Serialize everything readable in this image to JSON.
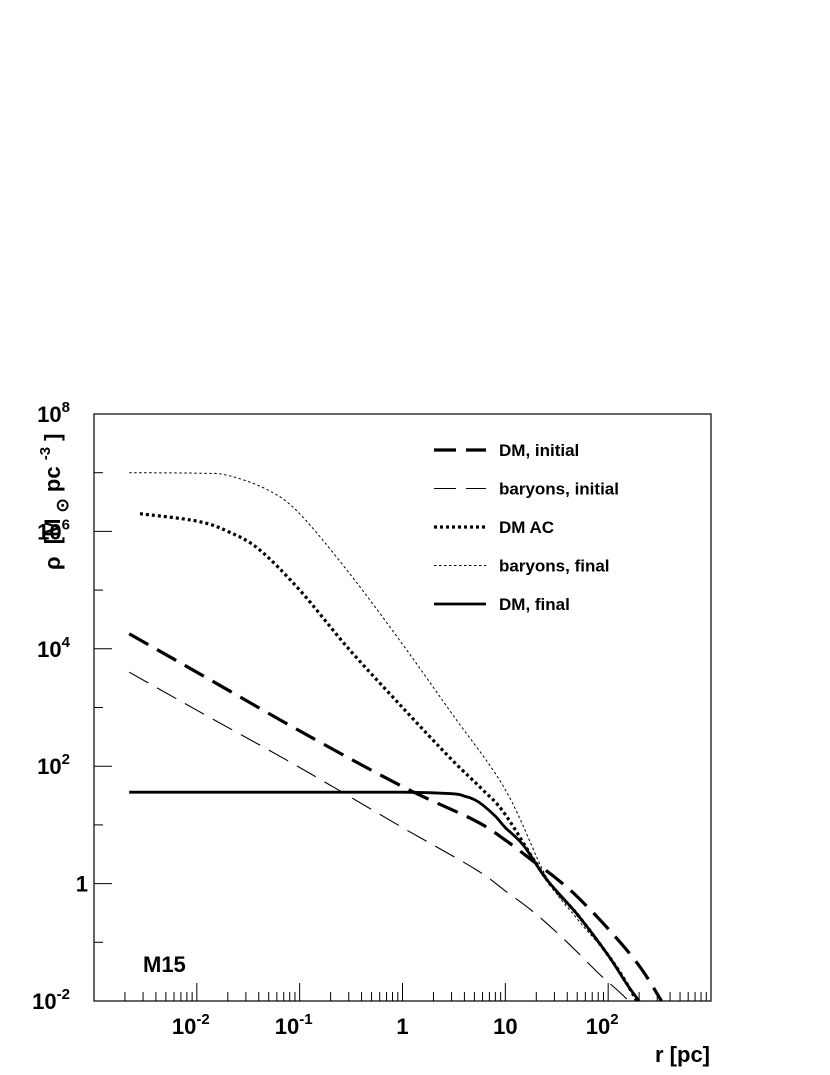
{
  "chart_data": {
    "type": "line",
    "title": "",
    "xlabel": "r [pc]",
    "ylabel": "ρ [M⊙pc⁻³]",
    "ylabel_parts": {
      "sym": "ρ",
      "open": "[M",
      "sun": "⊙",
      "unit": "pc",
      "exp": "-3",
      "close": "]"
    },
    "xscale": "log",
    "yscale": "log",
    "xlim": [
      0.001,
      1000
    ],
    "ylim": [
      0.01,
      100000000
    ],
    "x_ticks": [
      {
        "value": 0.01,
        "base": "10",
        "exp": "-2"
      },
      {
        "value": 0.1,
        "base": "10",
        "exp": "-1"
      },
      {
        "value": 1,
        "base": "1",
        "exp": ""
      },
      {
        "value": 10,
        "base": "10",
        "exp": ""
      },
      {
        "value": 100,
        "base": "10",
        "exp": "2"
      }
    ],
    "y_ticks": [
      {
        "value": 0.01,
        "base": "10",
        "exp": "-2"
      },
      {
        "value": 1,
        "base": "1",
        "exp": ""
      },
      {
        "value": 100,
        "base": "10",
        "exp": "2"
      },
      {
        "value": 10000,
        "base": "10",
        "exp": "4"
      },
      {
        "value": 1000000,
        "base": "10",
        "exp": "6"
      },
      {
        "value": 100000000,
        "base": "10",
        "exp": "8"
      }
    ],
    "annotation": "M15",
    "legend_position": "top-right",
    "series": [
      {
        "name": "DM, initial",
        "style": "long-dash-thick",
        "x": [
          0.0022,
          0.01,
          0.1,
          1,
          5,
          10,
          20,
          30,
          50,
          100,
          200,
          330
        ],
        "y": [
          18000,
          4000,
          400,
          45,
          12,
          5.5,
          2.2,
          1.3,
          0.6,
          0.17,
          0.04,
          0.01
        ]
      },
      {
        "name": "baryons, initial",
        "style": "long-dash-thin",
        "x": [
          0.0022,
          0.01,
          0.1,
          1,
          5,
          10,
          20,
          40,
          80,
          130,
          180
        ],
        "y": [
          4000,
          900,
          95,
          9,
          1.8,
          0.75,
          0.3,
          0.1,
          0.03,
          0.014,
          0.008
        ]
      },
      {
        "name": "DM AC",
        "style": "dotted-thick",
        "x": [
          0.0028,
          0.01,
          0.02,
          0.04,
          0.1,
          0.3,
          1,
          3,
          6,
          10,
          25,
          50,
          100,
          140,
          190
        ],
        "y": [
          2000000,
          1500000,
          1000000,
          500000,
          100000,
          10000,
          1000,
          130,
          40,
          15,
          1.2,
          0.3,
          0.06,
          0.025,
          0.01
        ]
      },
      {
        "name": "baryons, final",
        "style": "dotted-thin",
        "x": [
          0.0022,
          0.01,
          0.02,
          0.05,
          0.1,
          0.3,
          1,
          3,
          10,
          25,
          50,
          100,
          200
        ],
        "y": [
          10000000,
          9800000,
          9000000,
          5000000,
          2000000,
          200000,
          12000,
          800,
          40,
          1.3,
          0.25,
          0.06,
          0.01
        ]
      },
      {
        "name": "DM, final",
        "style": "solid",
        "x": [
          0.0022,
          0.1,
          1,
          3,
          4,
          5,
          6,
          8,
          10,
          15,
          25,
          50,
          100,
          150,
          200
        ],
        "y": [
          36,
          36,
          36,
          34,
          31,
          27,
          22,
          14,
          9,
          4.5,
          1.2,
          0.3,
          0.06,
          0.02,
          0.01
        ]
      }
    ]
  }
}
